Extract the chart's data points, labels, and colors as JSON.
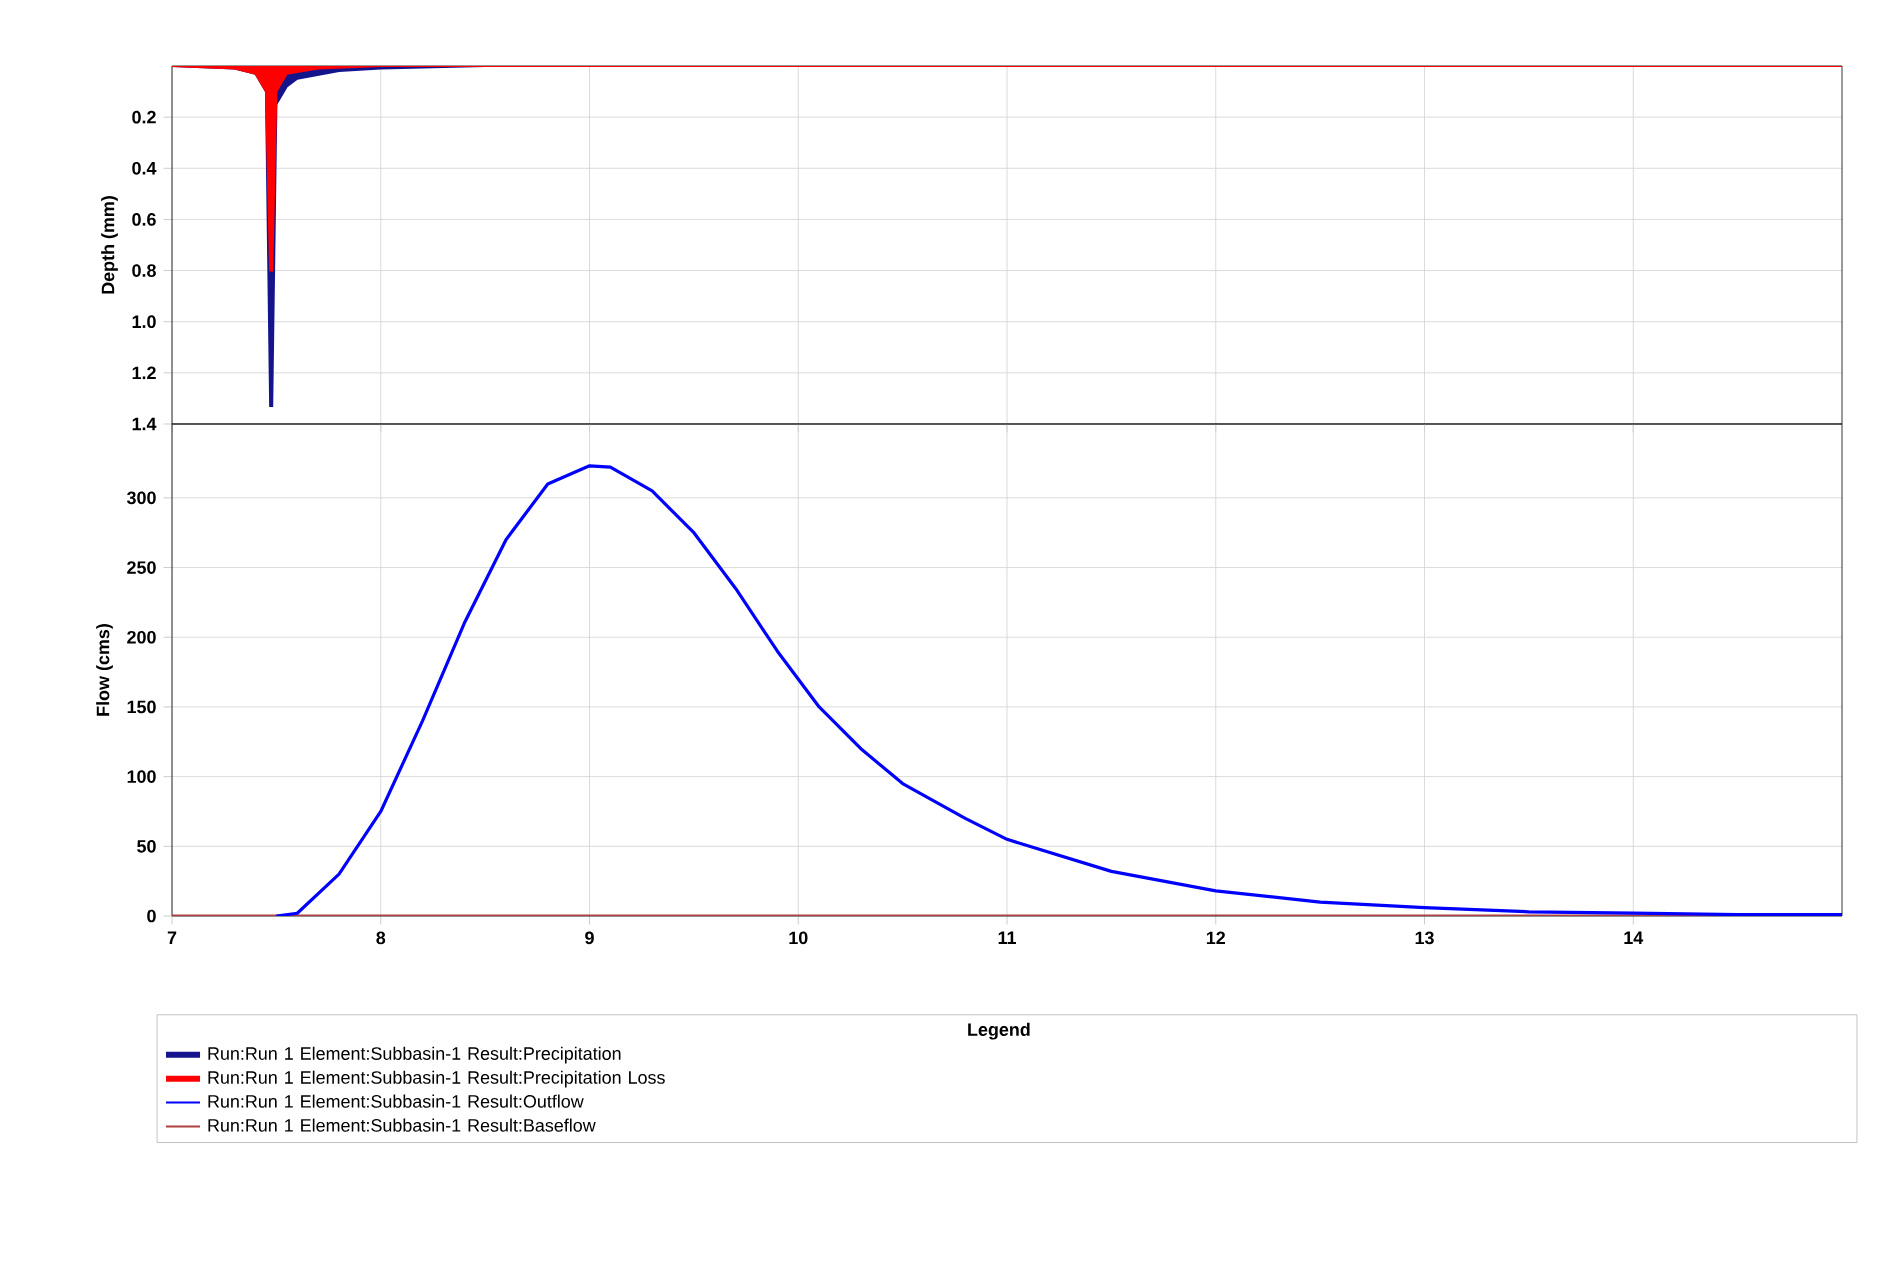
{
  "chart_data": [
    {
      "type": "area",
      "ylabel": "Depth (mm)",
      "xlim": [
        7,
        15
      ],
      "ylim": [
        1.4,
        0
      ],
      "xticks": [
        7,
        8,
        9,
        10,
        11,
        12,
        13,
        14
      ],
      "yticks": [
        0.2,
        0.4,
        0.6,
        0.8,
        {
          "value": 1,
          "label": "1.0"
        },
        1.2,
        1.4
      ],
      "tick_labels": "y",
      "grid": true,
      "series": [
        {
          "name": "Run:Run 1 Element:Subbasin-1 Result:Precipitation",
          "color": "#14148c",
          "x": [
            7,
            7.3,
            7.4,
            7.45,
            7.47,
            7.48,
            7.5,
            7.55,
            7.6,
            7.8,
            8.0,
            8.5,
            15
          ],
          "values": [
            0,
            0.01,
            0.03,
            0.1,
            1.33,
            1.33,
            0.15,
            0.08,
            0.05,
            0.02,
            0.01,
            0,
            0
          ]
        },
        {
          "name": "Run:Run 1 Element:Subbasin-1 Result:Precipitation Loss",
          "color": "#ff0000",
          "x": [
            7,
            7.3,
            7.4,
            7.45,
            7.47,
            7.48,
            7.5,
            7.55,
            7.7,
            8.0,
            15
          ],
          "values": [
            0,
            0.01,
            0.03,
            0.1,
            0.8,
            0.8,
            0.1,
            0.03,
            0.01,
            0,
            0
          ]
        }
      ]
    },
    {
      "type": "line",
      "ylabel": "Flow (cms)",
      "xlim": [
        7,
        15
      ],
      "ylim": [
        0,
        353
      ],
      "xticks": [
        7,
        8,
        9,
        10,
        11,
        12,
        13,
        14
      ],
      "yticks": [
        0,
        50,
        100,
        150,
        200,
        250,
        300
      ],
      "grid": true,
      "legend": "bottom",
      "legend_title": "Legend",
      "series": [
        {
          "name": "Run:Run 1 Element:Subbasin-1 Result:Outflow",
          "color": "#0000ff",
          "x": [
            7.5,
            7.6,
            7.8,
            8.0,
            8.2,
            8.4,
            8.6,
            8.8,
            9.0,
            9.1,
            9.3,
            9.5,
            9.7,
            9.9,
            10.1,
            10.3,
            10.5,
            10.8,
            11.0,
            11.5,
            12.0,
            12.5,
            13.0,
            13.5,
            14.0,
            14.5,
            15
          ],
          "values": [
            0,
            2,
            30,
            75,
            140,
            210,
            270,
            310,
            323,
            322,
            305,
            275,
            235,
            190,
            150,
            120,
            95,
            70,
            55,
            32,
            18,
            10,
            6,
            3,
            2,
            1,
            1
          ]
        },
        {
          "name": "Run:Run 1 Element:Subbasin-1 Result:Baseflow",
          "color": "#b04040",
          "x": [
            7,
            15
          ],
          "values": [
            0,
            0
          ]
        }
      ]
    }
  ]
}
